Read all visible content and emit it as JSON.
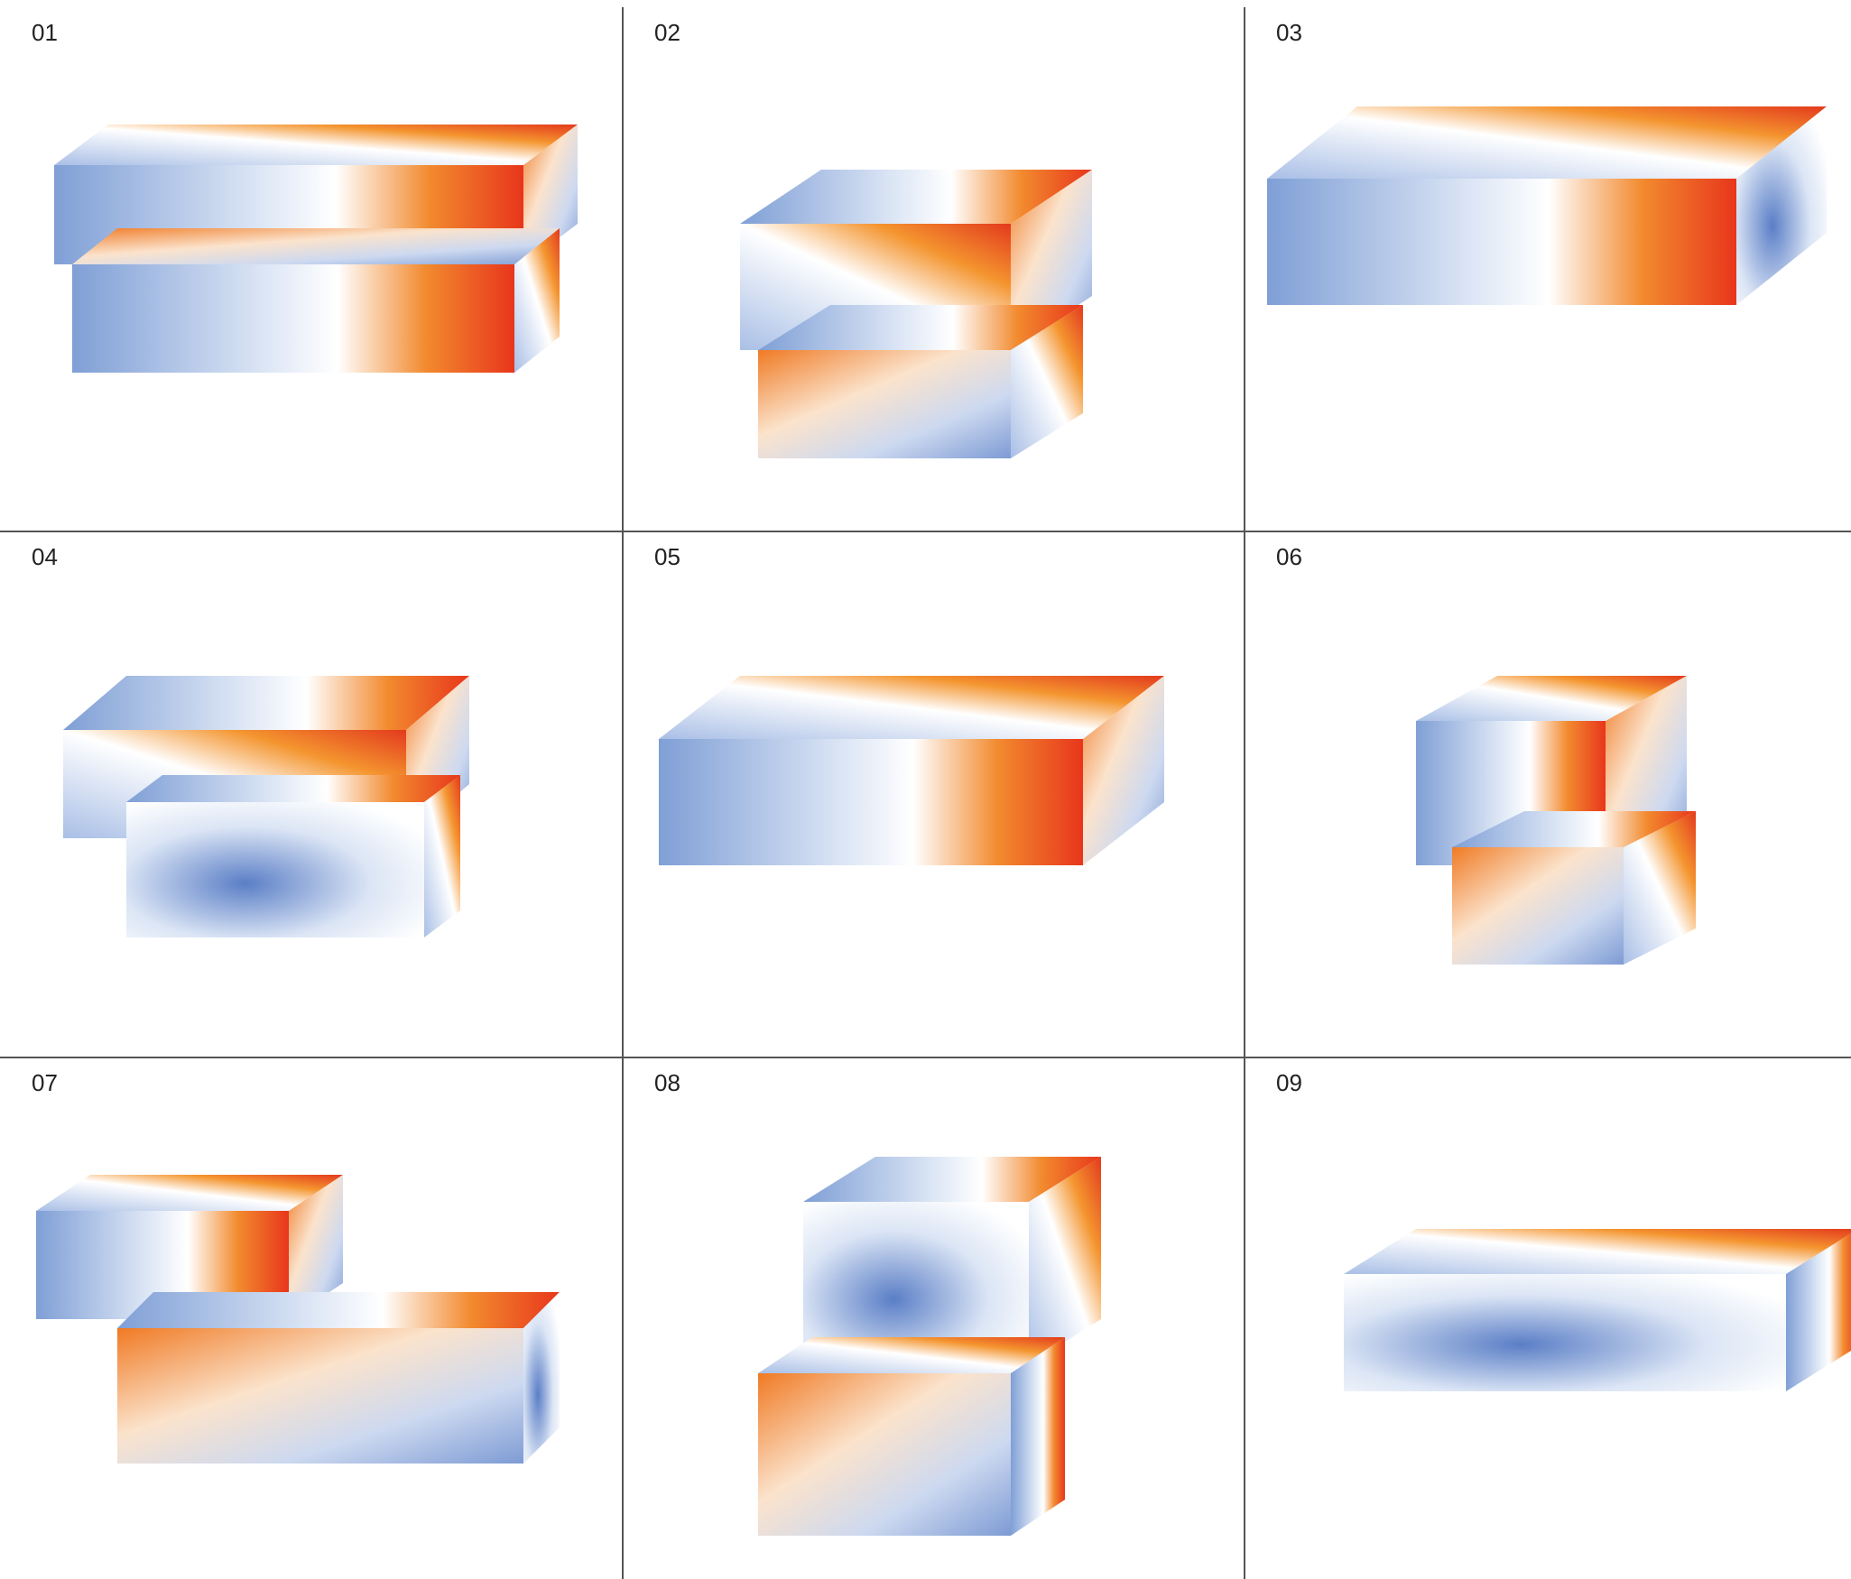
{
  "panels": [
    {
      "label": "01"
    },
    {
      "label": "02"
    },
    {
      "label": "03"
    },
    {
      "label": "04"
    },
    {
      "label": "05"
    },
    {
      "label": "06"
    },
    {
      "label": "07"
    },
    {
      "label": "08"
    },
    {
      "label": "09"
    }
  ]
}
